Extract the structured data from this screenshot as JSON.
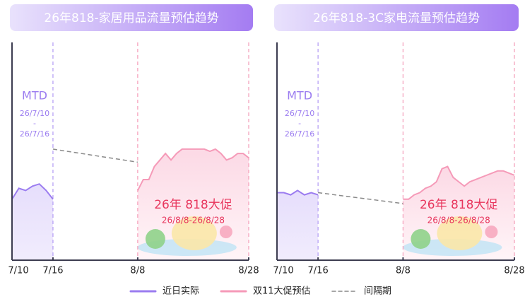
{
  "chart_data": [
    {
      "type": "line",
      "title": "26年818-家居用品流量预估趋势",
      "xticks": [
        "7/10",
        "7/16",
        "8/8",
        "8/28"
      ],
      "ylim": [
        0,
        100
      ],
      "annotations": {
        "mtd_label": "MTD",
        "mtd_start": "26/7/10",
        "mtd_sep": "-",
        "mtd_end": "26/7/16",
        "promo_title": "26年 818大促",
        "promo_range": "26/8/8-26/8/28"
      },
      "series": [
        {
          "name": "近日实际",
          "color": "#9b7cf0",
          "fill": true,
          "dash": false,
          "x": [
            "7/10",
            "7/11",
            "7/12",
            "7/13",
            "7/14",
            "7/15",
            "7/16"
          ],
          "values": [
            28,
            33,
            32,
            34,
            35,
            32,
            28
          ]
        },
        {
          "name": "双11大促预估",
          "color": "#f59ab8",
          "fill": true,
          "dash": false,
          "x": [
            "8/8",
            "8/9",
            "8/10",
            "8/11",
            "8/12",
            "8/13",
            "8/14",
            "8/15",
            "8/16",
            "8/17",
            "8/18",
            "8/19",
            "8/20",
            "8/21",
            "8/22",
            "8/23",
            "8/24",
            "8/25",
            "8/26",
            "8/27",
            "8/28"
          ],
          "values": [
            32,
            37,
            37,
            43,
            46,
            49,
            46,
            49,
            51,
            51,
            51,
            51,
            51,
            50,
            51,
            49,
            46,
            47,
            49,
            49,
            47
          ]
        },
        {
          "name": "间隔期",
          "color": "#8a8a8a",
          "fill": false,
          "dash": true,
          "x": [
            "7/16",
            "8/8"
          ],
          "values": [
            51,
            45
          ]
        }
      ]
    },
    {
      "type": "line",
      "title": "26年818-3C家电流量预估趋势",
      "xticks": [
        "7/10",
        "7/16",
        "8/8",
        "8/28"
      ],
      "ylim": [
        0,
        100
      ],
      "annotations": {
        "mtd_label": "MTD",
        "mtd_start": "26/7/10",
        "mtd_sep": "-",
        "mtd_end": "26/7/16",
        "promo_title": "26年 818大促",
        "promo_range": "26/8/8-26/8/28"
      },
      "series": [
        {
          "color": "#9b7cf0",
          "fill": true,
          "dash": false,
          "x": [
            "7/10",
            "7/11",
            "7/12",
            "7/13",
            "7/14",
            "7/15",
            "7/16"
          ],
          "values": [
            31,
            31,
            30,
            32,
            30,
            31,
            30
          ]
        },
        {
          "color": "#f59ab8",
          "fill": true,
          "dash": false,
          "x": [
            "8/8",
            "8/9",
            "8/10",
            "8/11",
            "8/12",
            "8/13",
            "8/14",
            "8/15",
            "8/16",
            "8/17",
            "8/18",
            "8/19",
            "8/20",
            "8/21",
            "8/22",
            "8/23",
            "8/24",
            "8/25",
            "8/26",
            "8/27",
            "8/28"
          ],
          "values": [
            28,
            28,
            30,
            31,
            33,
            34,
            36,
            42,
            43,
            38,
            36,
            34,
            36,
            37,
            38,
            39,
            40,
            41,
            41,
            40,
            39
          ]
        },
        {
          "color": "#8a8a8a",
          "fill": false,
          "dash": true,
          "x": [
            "7/16",
            "8/8"
          ],
          "values": [
            31,
            26
          ]
        }
      ]
    }
  ]
}
